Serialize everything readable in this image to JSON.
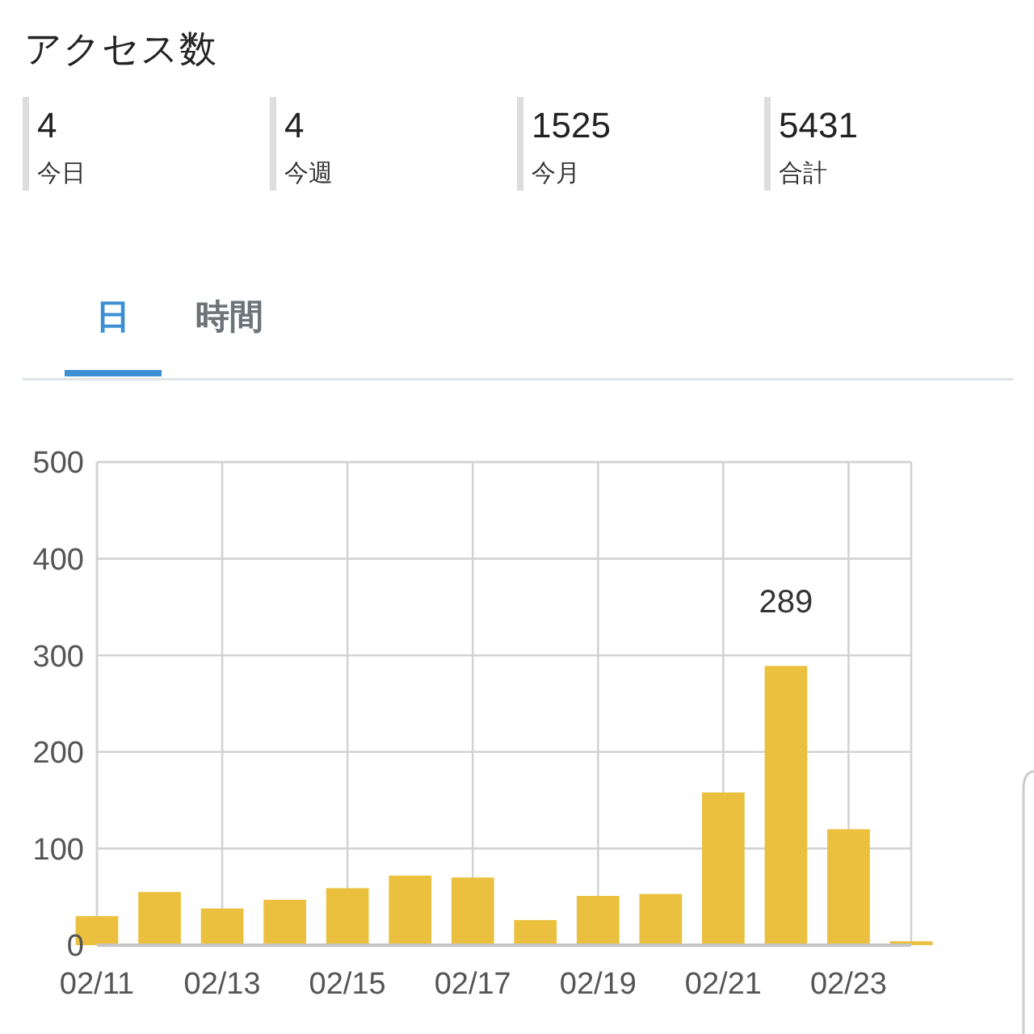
{
  "chart_data": [
    {
      "type": "other",
      "title": "アクセス数",
      "categories": [
        "今日",
        "今週",
        "今月",
        "合計"
      ],
      "values": [
        4,
        4,
        1525,
        5431
      ],
      "data_labels": true
    },
    {
      "type": "bar",
      "annotations": [
        "日",
        "時間"
      ],
      "x": [
        "--02-11",
        "--02-12",
        "--02-13",
        "--02-14",
        "--02-15",
        "--02-16",
        "--02-17",
        "--02-18",
        "--02-19",
        "--02-20",
        "--02-21",
        "--02-22",
        "--02-23",
        "--02-24"
      ],
      "values": [
        30,
        55,
        38,
        47,
        59,
        72,
        70,
        26,
        51,
        53,
        158,
        289,
        120,
        4
      ],
      "value_labels": [
        null,
        null,
        null,
        null,
        null,
        null,
        null,
        null,
        null,
        null,
        null,
        "289",
        null,
        null
      ],
      "color": "#ebc03f",
      "xlim": [
        "--02-11",
        "--02-24"
      ],
      "xticks": [
        {
          "value": "--02-11",
          "label": "02/11"
        },
        {
          "value": "--02-13",
          "label": "02/13"
        },
        {
          "value": "--02-15",
          "label": "02/15"
        },
        {
          "value": "--02-17",
          "label": "02/17"
        },
        {
          "value": "--02-19",
          "label": "02/19"
        },
        {
          "value": "--02-21",
          "label": "02/21"
        },
        {
          "value": "--02-23",
          "label": "02/23"
        }
      ],
      "ylim": [
        0,
        500
      ],
      "yticks": [
        0,
        100,
        200,
        300,
        400,
        500
      ],
      "grid": true
    }
  ]
}
